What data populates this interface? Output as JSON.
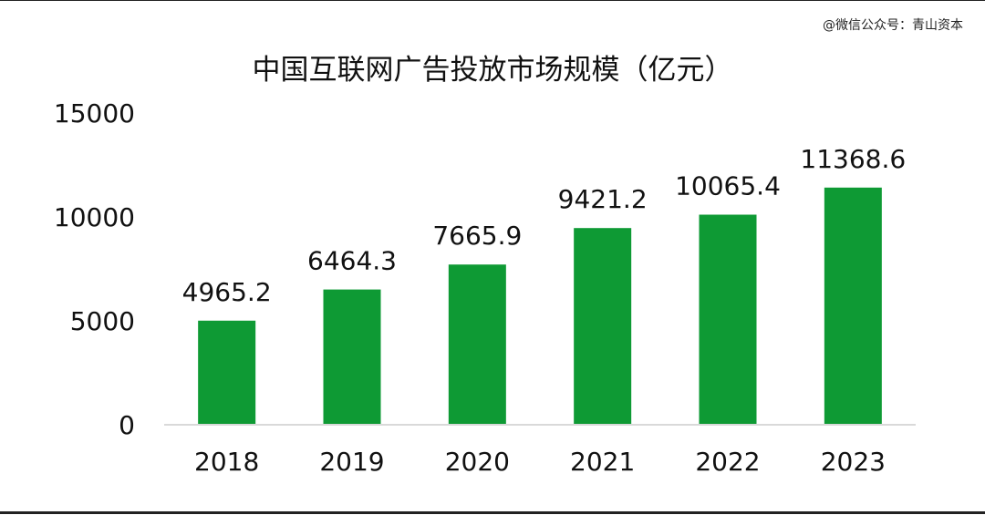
{
  "watermark": "@微信公众号：青山资本",
  "chart_data": {
    "type": "bar",
    "title": "中国互联网广告投放市场规模（亿元）",
    "xlabel": "",
    "ylabel": "",
    "categories": [
      "2018",
      "2019",
      "2020",
      "2021",
      "2022",
      "2023"
    ],
    "values": [
      4965.2,
      6464.3,
      7665.9,
      9421.2,
      10065.4,
      11368.6
    ],
    "value_labels": [
      "4965.2",
      "6464.3",
      "7665.9",
      "9421.2",
      "10065.4",
      "11368.6"
    ],
    "ylim": [
      0,
      15000
    ],
    "yticks": [
      0,
      5000,
      10000,
      15000
    ],
    "ytick_labels": [
      "0",
      "5000",
      "10000",
      "15000"
    ],
    "grid": false,
    "legend": "none",
    "bar_color": "#0e9a34"
  }
}
